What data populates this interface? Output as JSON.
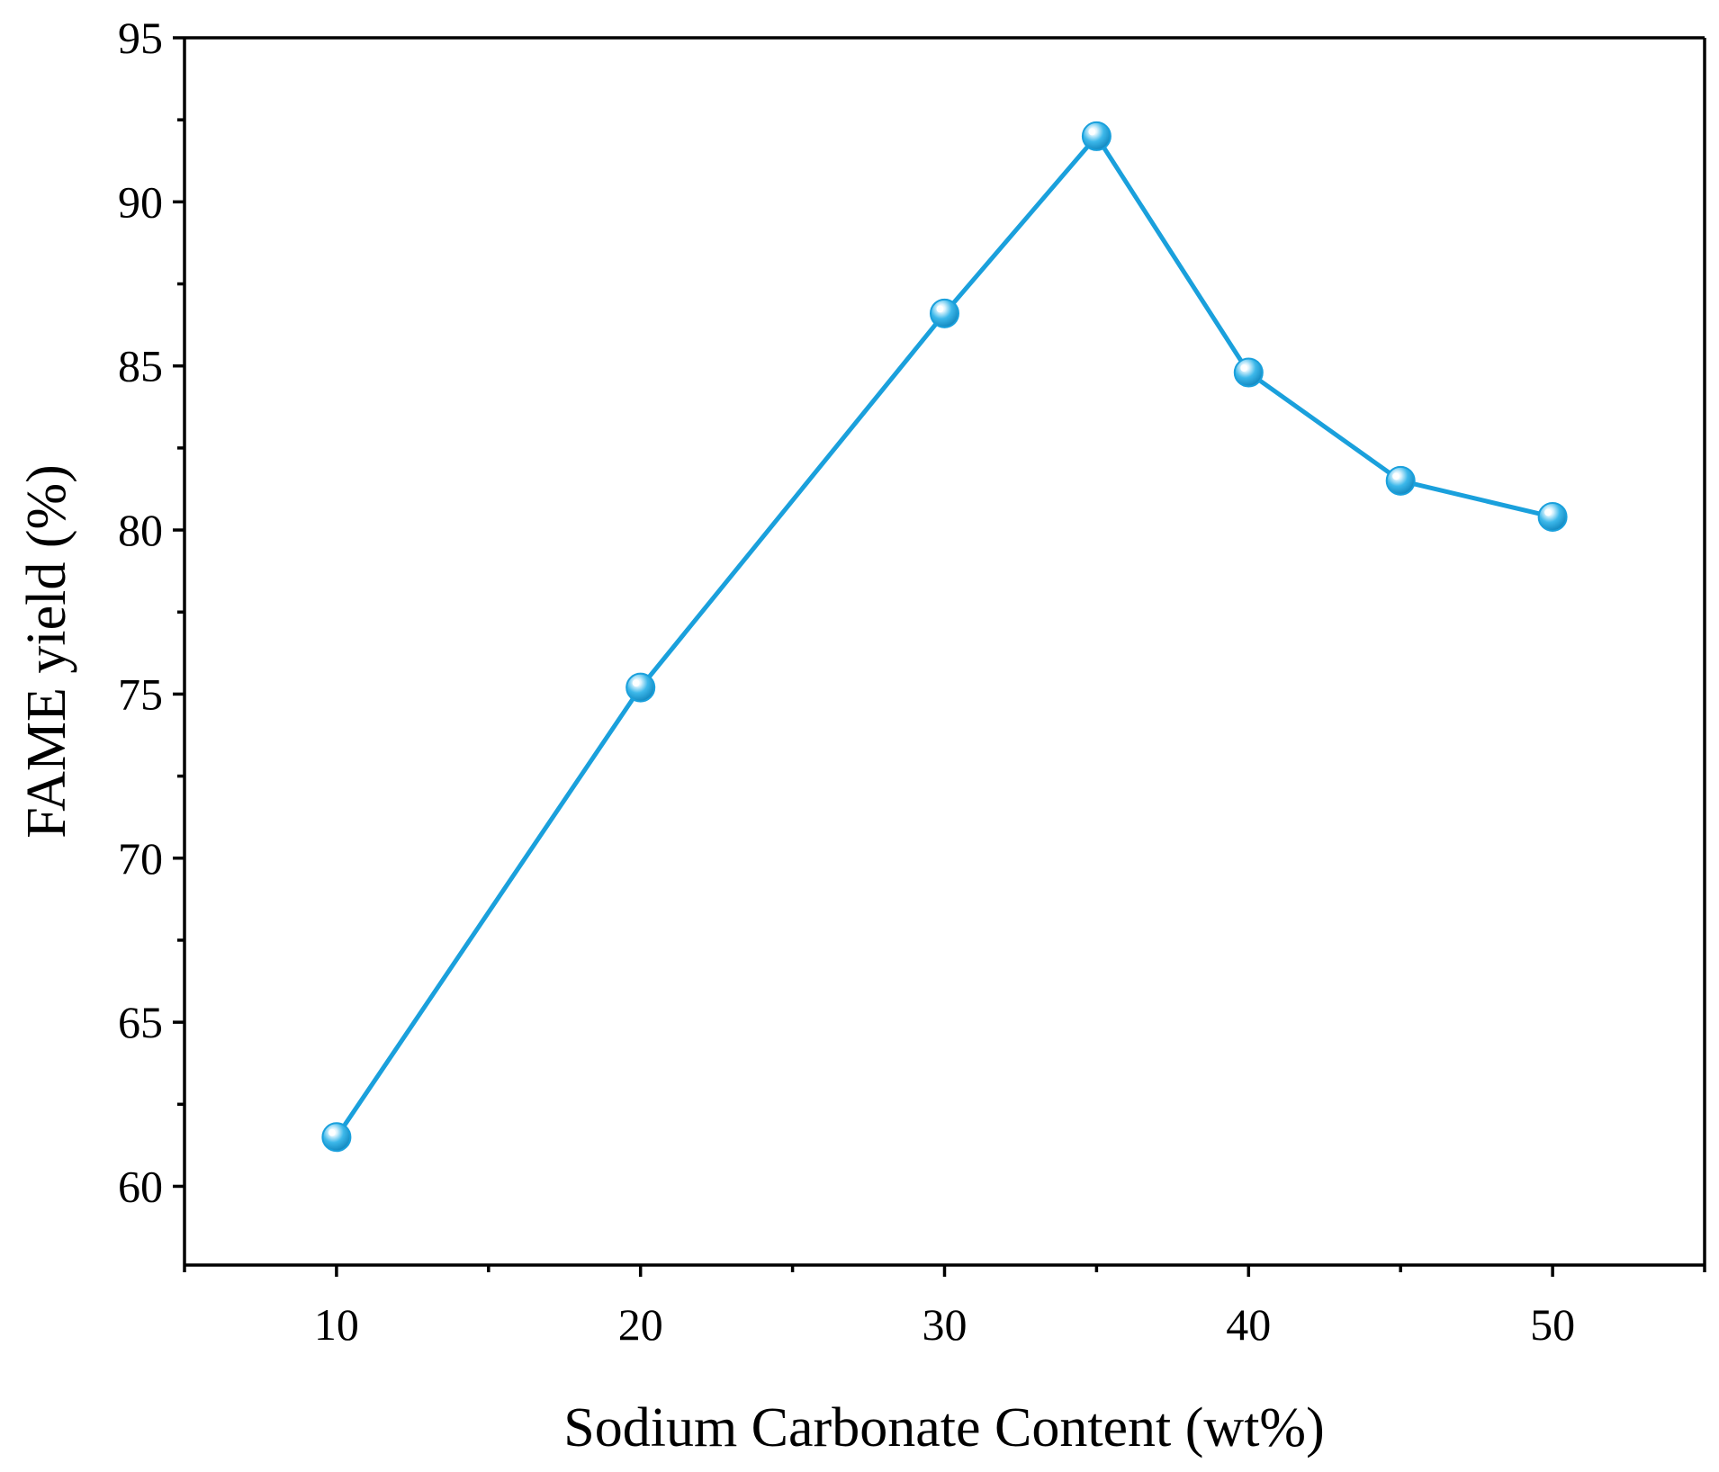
{
  "chart_data": {
    "type": "line",
    "title": "",
    "xlabel": "Sodium Carbonate Content (wt%)",
    "ylabel": "FAME yield (%)",
    "xlim": [
      5,
      55
    ],
    "ylim": [
      57.6,
      95
    ],
    "x_major_ticks": [
      10,
      20,
      30,
      40,
      50
    ],
    "x_minor_ticks": [
      5,
      15,
      25,
      35,
      45,
      55
    ],
    "x_tick_labels": [
      "10",
      "20",
      "30",
      "40",
      "50"
    ],
    "y_major_ticks": [
      60,
      65,
      70,
      75,
      80,
      85,
      90,
      95
    ],
    "y_minor_ticks": [
      62.5,
      67.5,
      72.5,
      77.5,
      82.5,
      87.5,
      92.5
    ],
    "y_tick_labels": [
      "60",
      "65",
      "70",
      "75",
      "80",
      "85",
      "90",
      "95"
    ],
    "grid": false,
    "series": [
      {
        "name": "FAME yield",
        "color": "#1aa0dc",
        "marker": "circle",
        "x": [
          10,
          20,
          30,
          35,
          40,
          45,
          50
        ],
        "y": [
          61.5,
          75.2,
          86.6,
          92.0,
          84.8,
          81.5,
          80.4
        ]
      }
    ]
  }
}
